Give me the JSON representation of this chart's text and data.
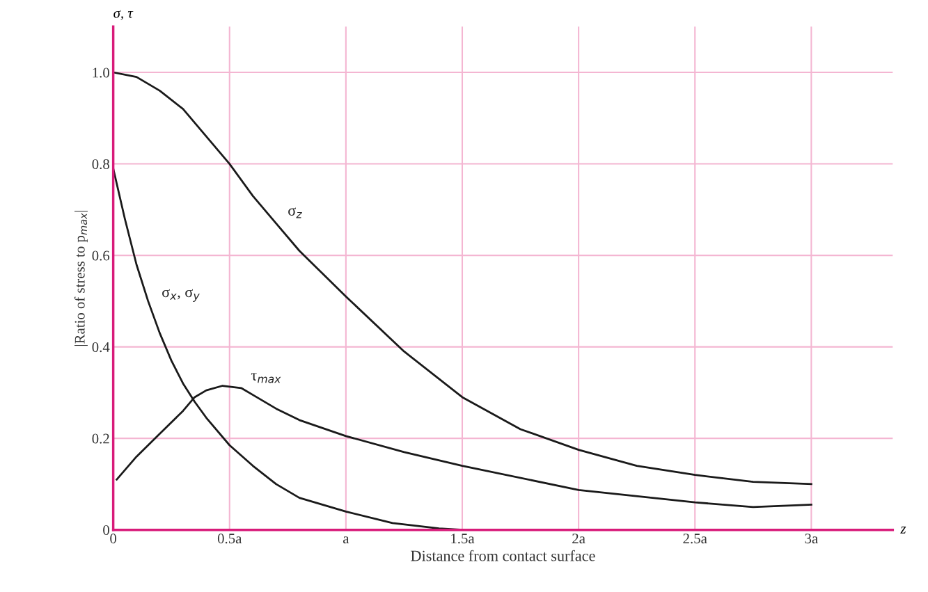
{
  "chart_data": {
    "type": "line",
    "xlabel": "Distance from contact surface",
    "ylabel": "|Ratio of stress to p$_{max}$|",
    "annotations": [
      "σ, τ",
      "z"
    ],
    "xlim": [
      0,
      3.35
    ],
    "ylim": [
      0,
      1.1
    ],
    "xticks": [
      0,
      {
        "value": 0.5,
        "label": "0.5a"
      },
      {
        "value": 1,
        "label": "a"
      },
      {
        "value": 1.5,
        "label": "1.5a"
      },
      {
        "value": 2,
        "label": "2a"
      },
      {
        "value": 2.5,
        "label": "2.5a"
      },
      {
        "value": 3,
        "label": "3a"
      }
    ],
    "yticks": [
      0,
      0.2,
      0.4,
      0.6,
      0.8,
      {
        "value": 1,
        "label": "1.0"
      }
    ],
    "grid": true,
    "legend": false,
    "marker": "none",
    "line_style": "solid",
    "series": [
      {
        "name": "σ$_{z}$",
        "color": "#1a1a1a",
        "x": [
          0,
          0.1,
          0.2,
          0.3,
          0.4,
          0.5,
          0.6,
          0.7,
          0.8,
          1.0,
          1.25,
          1.5,
          1.75,
          2.0,
          2.25,
          2.5,
          2.75,
          3.0
        ],
        "values": [
          1.0,
          0.99,
          0.96,
          0.92,
          0.86,
          0.8,
          0.73,
          0.67,
          0.61,
          0.51,
          0.39,
          0.29,
          0.22,
          0.175,
          0.14,
          0.12,
          0.105,
          0.1
        ]
      },
      {
        "name": "σ$_{x}$, σ$_{y}$",
        "color": "#1a1a1a",
        "x": [
          0,
          0.05,
          0.1,
          0.15,
          0.2,
          0.25,
          0.3,
          0.35,
          0.4,
          0.5,
          0.6,
          0.7,
          0.8,
          1.0,
          1.2,
          1.4,
          1.5
        ],
        "values": [
          0.79,
          0.68,
          0.58,
          0.5,
          0.43,
          0.37,
          0.32,
          0.28,
          0.245,
          0.185,
          0.14,
          0.1,
          0.07,
          0.04,
          0.015,
          0.003,
          0
        ]
      },
      {
        "name": "τ$_{max}$",
        "color": "#1a1a1a",
        "x": [
          0.015,
          0.1,
          0.2,
          0.3,
          0.35,
          0.4,
          0.47,
          0.55,
          0.6,
          0.7,
          0.8,
          1.0,
          1.25,
          1.5,
          2.0,
          2.5,
          2.75,
          3.0
        ],
        "values": [
          0.11,
          0.16,
          0.21,
          0.26,
          0.29,
          0.305,
          0.315,
          0.31,
          0.295,
          0.265,
          0.24,
          0.205,
          0.17,
          0.14,
          0.087,
          0.06,
          0.05,
          0.055
        ]
      }
    ]
  }
}
